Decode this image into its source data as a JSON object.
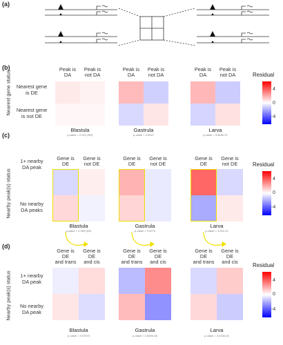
{
  "panels": {
    "a": "(a)",
    "b": "(b)",
    "c": "(c)",
    "d": "(d)"
  },
  "legend": {
    "title": "Residual",
    "ticks": [
      "4",
      "0",
      "-4"
    ],
    "scale": {
      "max": 6,
      "min": -6,
      "colors": {
        "high": "#ff0000",
        "mid": "#ffffff",
        "low": "#0000ff"
      }
    }
  },
  "panel_b": {
    "y_title": "Nearest gene status",
    "col_labels": [
      "Peak is\nDA",
      "Peak is\nnot DA"
    ],
    "row_labels": [
      "Nearest gene\nis DE",
      "Nearest gene\nis not DE"
    ],
    "stages": [
      {
        "name": "Blastula",
        "pvalue": "p-value = 0.921 (NS)",
        "cells": [
          0.5,
          0.3,
          0.2,
          0.2
        ]
      },
      {
        "name": "Gastrula",
        "pvalue": "p-value = 0.0047",
        "cells": [
          1.6,
          -1.1,
          -0.9,
          0.6
        ]
      },
      {
        "name": "Larva",
        "pvalue": "p-value = 4.469e-07",
        "cells": [
          1.7,
          -1.2,
          -1.0,
          0.7
        ]
      }
    ]
  },
  "panel_c": {
    "y_title": "Nearby peak(s) status",
    "col_labels": [
      "Gene is\nDE",
      "Gene is\nnot DE"
    ],
    "row_labels": [
      "1+ nearby\nDA peak",
      "No nearby\nDA peaks"
    ],
    "stages": [
      {
        "name": "Blastula",
        "pvalue": "p-value = 0.359 (NS)",
        "cells": [
          -0.9,
          0.4,
          0.9,
          -0.3
        ]
      },
      {
        "name": "Gastrula",
        "pvalue": "p-value = 0.0270",
        "cells": [
          1.8,
          -0.5,
          1.0,
          -0.5
        ]
      },
      {
        "name": "Larva",
        "pvalue": "p-value = 3.01e-11",
        "cells": [
          3.6,
          -0.9,
          -2.0,
          0.5
        ]
      }
    ]
  },
  "panel_d": {
    "y_title": "Nearby peak(s) status",
    "col_labels": [
      "Gene is\nDE\nand trans",
      "Gene is\nDE\nand cis"
    ],
    "row_labels": [
      "1+ nearby\nDA peak",
      "No nearby\nDA peak"
    ],
    "stages": [
      {
        "name": "Blastula",
        "pvalue": "p-value = 0.07673",
        "cells": [
          -0.4,
          0.8,
          0.6,
          -0.8
        ]
      },
      {
        "name": "Gastrula",
        "pvalue": "p-value = 2.849e-08",
        "cells": [
          -1.6,
          2.7,
          1.6,
          -2.6
        ]
      },
      {
        "name": "Larva",
        "pvalue": "p-value = 3.415e-04",
        "cells": [
          -0.9,
          1.2,
          0.9,
          -1.2
        ]
      }
    ]
  }
}
